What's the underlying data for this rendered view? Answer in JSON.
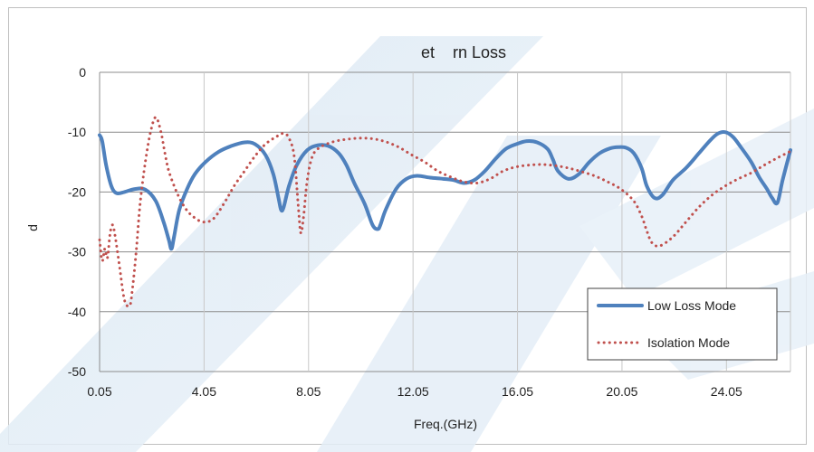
{
  "chart_data": {
    "type": "line",
    "title": "et    rn Loss",
    "xlabel": "Freq.(GHz)",
    "ylabel": "d",
    "xlim": [
      0.05,
      26.5
    ],
    "ylim": [
      -50,
      0
    ],
    "x_ticks": [
      "0.05",
      "4.05",
      "8.05",
      "12.05",
      "16.05",
      "20.05",
      "24.05"
    ],
    "x_tick_values": [
      0.05,
      4.05,
      8.05,
      12.05,
      16.05,
      20.05,
      24.05
    ],
    "y_ticks": [
      "0",
      "-10",
      "-20",
      "-30",
      "-40",
      "-50"
    ],
    "y_tick_values": [
      0,
      -10,
      -20,
      -30,
      -40,
      -50
    ],
    "grid": true,
    "legend_position": "bottom-right",
    "series": [
      {
        "name": "Low Loss Mode",
        "color": "#4f81bd",
        "style": "solid",
        "x": [
          0.05,
          0.15,
          0.3,
          0.5,
          0.7,
          1.0,
          1.4,
          1.8,
          2.2,
          2.5,
          2.7,
          2.8,
          2.9,
          3.1,
          3.4,
          3.7,
          4.1,
          4.6,
          5.1,
          5.6,
          6.0,
          6.4,
          6.7,
          6.9,
          7.0,
          7.1,
          7.3,
          7.6,
          8.0,
          8.4,
          8.8,
          9.2,
          9.5,
          9.8,
          10.2,
          10.5,
          10.7,
          10.8,
          11.0,
          11.4,
          11.8,
          12.2,
          12.7,
          13.2,
          13.6,
          14.0,
          14.4,
          14.8,
          15.2,
          15.6,
          16.0,
          16.4,
          16.8,
          17.2,
          17.4,
          17.6,
          18.0,
          18.4,
          18.8,
          19.2,
          19.6,
          19.9,
          20.2,
          20.5,
          20.8,
          21.0,
          21.3,
          21.6,
          22.0,
          22.5,
          23.0,
          23.4,
          23.7,
          24.0,
          24.3,
          24.6,
          25.0,
          25.3,
          25.6,
          25.8,
          26.0,
          26.2,
          26.5
        ],
        "values": [
          -10.5,
          -11.5,
          -15.5,
          -19.0,
          -20.2,
          -20.0,
          -19.5,
          -19.6,
          -21.5,
          -25.0,
          -28.0,
          -29.5,
          -27.5,
          -23.0,
          -19.5,
          -17.0,
          -15.0,
          -13.3,
          -12.3,
          -11.7,
          -12.0,
          -13.8,
          -17.0,
          -21.0,
          -23.0,
          -22.5,
          -19.0,
          -15.5,
          -13.0,
          -12.2,
          -12.3,
          -13.5,
          -15.5,
          -18.5,
          -22.0,
          -25.5,
          -26.2,
          -25.5,
          -23.0,
          -19.5,
          -17.8,
          -17.3,
          -17.6,
          -17.8,
          -18.0,
          -18.5,
          -18.0,
          -16.5,
          -14.5,
          -12.8,
          -12.0,
          -11.5,
          -11.7,
          -12.8,
          -14.5,
          -16.5,
          -17.8,
          -17.0,
          -15.0,
          -13.5,
          -12.7,
          -12.5,
          -12.6,
          -13.5,
          -16.0,
          -19.0,
          -21.0,
          -20.5,
          -18.0,
          -16.0,
          -13.5,
          -11.5,
          -10.3,
          -10.0,
          -10.8,
          -12.5,
          -15.0,
          -17.5,
          -19.5,
          -21.0,
          -21.8,
          -18.0,
          -13.0
        ]
      },
      {
        "name": "Isolation Mode",
        "color": "#c0504d",
        "style": "dotted",
        "x": [
          0.05,
          0.15,
          0.25,
          0.35,
          0.45,
          0.55,
          0.65,
          0.8,
          1.0,
          1.2,
          1.3,
          1.45,
          1.6,
          1.8,
          2.0,
          2.2,
          2.4,
          2.55,
          2.7,
          3.0,
          3.3,
          3.6,
          4.0,
          4.4,
          4.8,
          5.2,
          5.6,
          6.0,
          6.4,
          6.8,
          7.1,
          7.3,
          7.5,
          7.65,
          7.75,
          7.85,
          8.0,
          8.2,
          8.5,
          9.0,
          9.5,
          10.0,
          10.5,
          11.0,
          11.5,
          12.0,
          12.5,
          13.0,
          13.5,
          14.0,
          14.5,
          15.0,
          15.5,
          16.0,
          16.5,
          17.0,
          17.5,
          18.0,
          18.5,
          19.0,
          19.5,
          20.0,
          20.5,
          20.8,
          21.0,
          21.2,
          21.5,
          22.0,
          22.5,
          23.0,
          23.5,
          24.0,
          24.5,
          25.0,
          25.5,
          26.0,
          26.5
        ],
        "values": [
          -28.0,
          -31.5,
          -29.5,
          -31.0,
          -27.0,
          -25.5,
          -27.5,
          -32.0,
          -38.0,
          -39.0,
          -36.5,
          -30.0,
          -22.0,
          -15.0,
          -10.0,
          -7.5,
          -10.0,
          -13.5,
          -16.5,
          -20.0,
          -22.5,
          -24.0,
          -25.0,
          -24.5,
          -22.0,
          -19.0,
          -16.5,
          -14.0,
          -12.0,
          -10.8,
          -10.2,
          -11.0,
          -14.0,
          -22.0,
          -26.8,
          -24.5,
          -18.0,
          -14.0,
          -12.5,
          -11.6,
          -11.2,
          -11.0,
          -11.1,
          -11.6,
          -12.5,
          -13.8,
          -15.0,
          -16.5,
          -17.5,
          -18.3,
          -18.5,
          -17.8,
          -16.5,
          -15.8,
          -15.5,
          -15.4,
          -15.6,
          -16.0,
          -16.6,
          -17.3,
          -18.3,
          -19.5,
          -21.5,
          -24.0,
          -26.5,
          -28.5,
          -29.0,
          -27.5,
          -25.0,
          -22.5,
          -20.5,
          -19.0,
          -17.8,
          -16.8,
          -15.5,
          -14.3,
          -13.2
        ]
      }
    ]
  }
}
